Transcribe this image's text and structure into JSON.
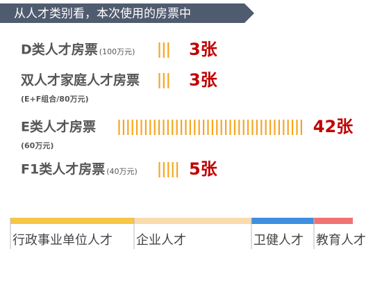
{
  "chart_data": {
    "type": "pictogram",
    "title": "从人才类别看，本次使用的房票中",
    "categories": [
      "D类人才房票",
      "双人才家庭人才房票",
      "E类人才房票",
      "F1类人才房票"
    ],
    "notes": [
      "(100万元)",
      "(E+F组合/80万元)",
      "(60万元)",
      "(40万元)"
    ],
    "values": [
      3,
      3,
      42,
      5
    ],
    "value_labels": [
      "3张",
      "3张",
      "42张",
      "5张"
    ],
    "color": "#f5a623",
    "value_label_color": "#c00000",
    "legend": [
      {
        "name": "行政事业单位人才",
        "color": "#f6c644"
      },
      {
        "name": "企业人才",
        "color": "#f9dbae"
      },
      {
        "name": "卫健人才",
        "color": "#3d8fe0"
      },
      {
        "name": "教育人才",
        "color": "#f07373"
      }
    ]
  }
}
